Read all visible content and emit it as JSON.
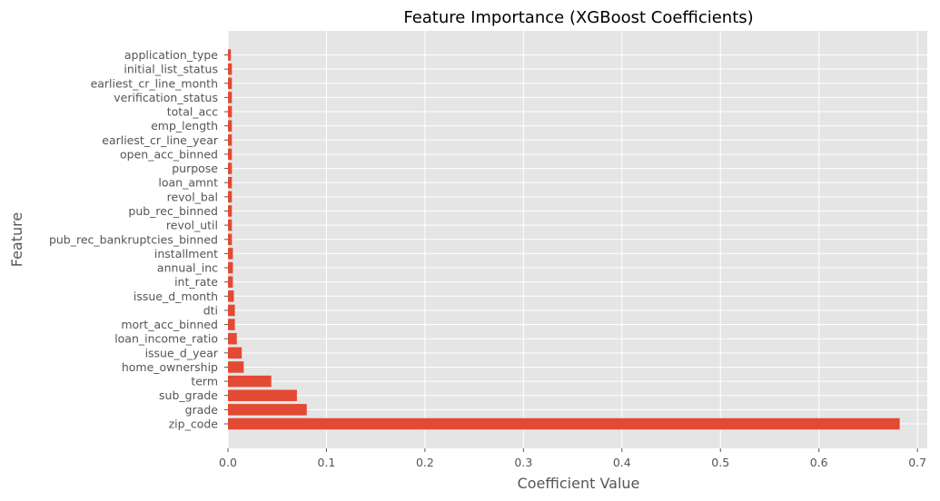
{
  "chart_data": {
    "type": "bar",
    "orientation": "horizontal",
    "title": "Feature Importance (XGBoost Coefficients)",
    "xlabel": "Coefficient Value",
    "ylabel": "Feature",
    "xlim": [
      0,
      0.71
    ],
    "xticks": [
      0.0,
      0.1,
      0.2,
      0.3,
      0.4,
      0.5,
      0.6,
      0.7
    ],
    "xtick_labels": [
      "0.0",
      "0.1",
      "0.2",
      "0.3",
      "0.4",
      "0.5",
      "0.6",
      "0.7"
    ],
    "grid": true,
    "style": "ggplot",
    "bar_color": "#E24A33",
    "background_color": "#E5E5E5",
    "categories": [
      "zip_code",
      "grade",
      "sub_grade",
      "term",
      "home_ownership",
      "issue_d_year",
      "loan_income_ratio",
      "mort_acc_binned",
      "dti",
      "issue_d_month",
      "int_rate",
      "annual_inc",
      "installment",
      "pub_rec_bankruptcies_binned",
      "revol_util",
      "pub_rec_binned",
      "revol_bal",
      "loan_amnt",
      "purpose",
      "open_acc_binned",
      "earliest_cr_line_year",
      "emp_length",
      "total_acc",
      "verification_status",
      "earliest_cr_line_month",
      "initial_list_status",
      "application_type"
    ],
    "values": [
      0.682,
      0.08,
      0.07,
      0.044,
      0.016,
      0.014,
      0.009,
      0.007,
      0.007,
      0.006,
      0.005,
      0.005,
      0.005,
      0.004,
      0.004,
      0.004,
      0.004,
      0.004,
      0.004,
      0.004,
      0.004,
      0.004,
      0.004,
      0.004,
      0.004,
      0.004,
      0.003
    ]
  }
}
